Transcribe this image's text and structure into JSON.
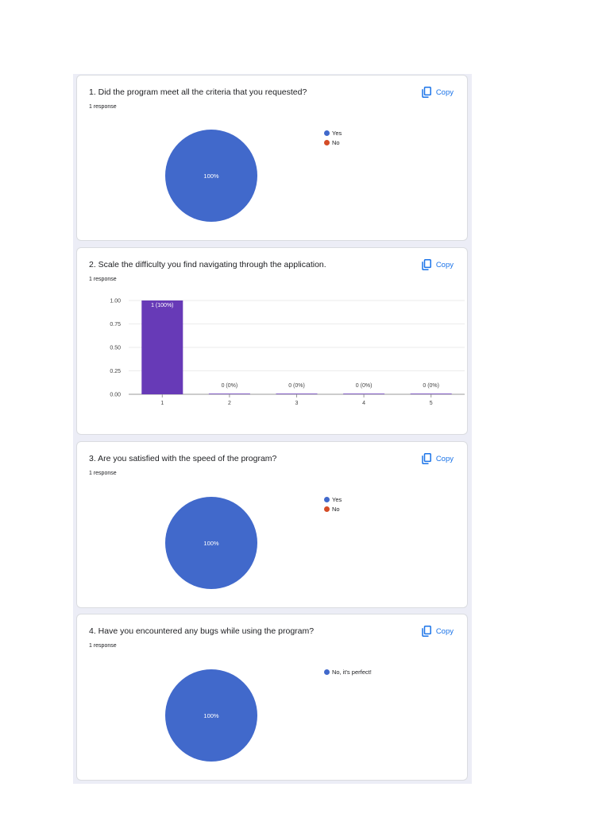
{
  "copy_label": "Copy",
  "icons": {
    "copy": "copy-icon"
  },
  "colors": {
    "yes": "#4169cb",
    "no": "#d44c27",
    "bar": "#673ab7",
    "accent": "#1a73e8",
    "panel": "#ecedf6"
  },
  "questions": [
    {
      "title": "1. Did the program meet all the criteria that you requested?",
      "responses": "1 response",
      "chart_data": {
        "type": "pie",
        "labels": [
          "Yes",
          "No"
        ],
        "values": [
          1,
          0
        ],
        "slice_labels": [
          "100%"
        ],
        "colors": [
          "#4169cb",
          "#d44c27"
        ],
        "legend_position": "right"
      }
    },
    {
      "title": "2. Scale the difficulty you find navigating through the application.",
      "responses": "1 response",
      "chart_data": {
        "type": "bar",
        "categories": [
          "1",
          "2",
          "3",
          "4",
          "5"
        ],
        "values": [
          1,
          0,
          0,
          0,
          0
        ],
        "data_labels": [
          "1 (100%)",
          "0 (0%)",
          "0 (0%)",
          "0 (0%)",
          "0 (0%)"
        ],
        "yticks": [
          "0.00",
          "0.25",
          "0.50",
          "0.75",
          "1.00"
        ],
        "ylim": [
          0,
          1
        ],
        "grid": true,
        "color": "#673ab7"
      }
    },
    {
      "title": "3. Are you satisfied with the speed of the program?",
      "responses": "1 response",
      "chart_data": {
        "type": "pie",
        "labels": [
          "Yes",
          "No"
        ],
        "values": [
          1,
          0
        ],
        "slice_labels": [
          "100%"
        ],
        "colors": [
          "#4169cb",
          "#d44c27"
        ],
        "legend_position": "right"
      }
    },
    {
      "title": "4. Have you encountered any bugs while using the program?",
      "responses": "1 response",
      "chart_data": {
        "type": "pie",
        "labels": [
          "No, it's perfect!"
        ],
        "values": [
          1
        ],
        "slice_labels": [
          "100%"
        ],
        "colors": [
          "#4169cb"
        ],
        "legend_position": "right"
      }
    }
  ]
}
